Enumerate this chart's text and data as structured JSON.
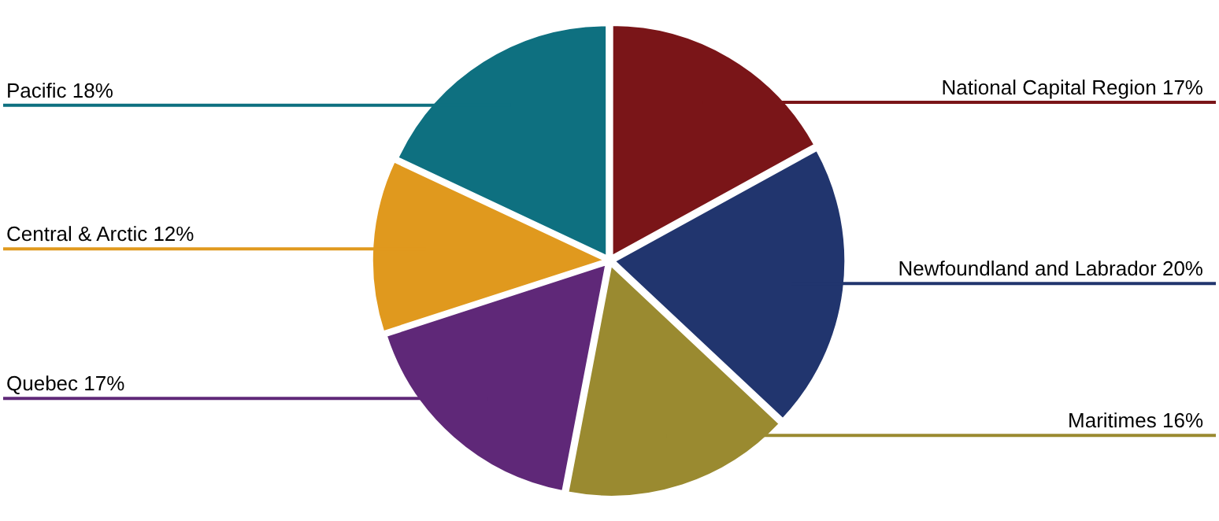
{
  "chart_data": {
    "type": "pie",
    "categories": [
      "National Capital Region",
      "Newfoundland and Labrador",
      "Maritimes",
      "Quebec",
      "Central & Arctic",
      "Pacific"
    ],
    "values": [
      17,
      20,
      16,
      17,
      12,
      18
    ],
    "value_labels": [
      "17%",
      "20%",
      "16%",
      "17%",
      "12%",
      "18%"
    ],
    "colors": [
      "#7a1518",
      "#21356e",
      "#9a8a30",
      "#5f2878",
      "#e0991e",
      "#0e7080"
    ]
  }
}
